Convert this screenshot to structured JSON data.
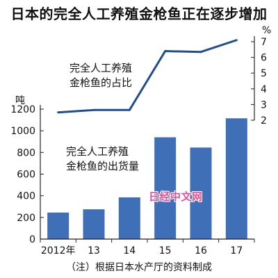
{
  "title": "日本的完全人工养殖金枪鱼正在逐步增加",
  "note": "（注）根据日本水产厅的资料制成",
  "watermark": "日经中文网",
  "chart_data": {
    "type": "bar",
    "categories": [
      "2012年",
      "13",
      "14",
      "15",
      "16",
      "17"
    ],
    "series": [
      {
        "name": "完全人工养殖金枪鱼的出货量",
        "chart_type": "bar",
        "axis": "left",
        "unit": "吨",
        "values": [
          245,
          275,
          385,
          940,
          845,
          1115
        ]
      },
      {
        "name": "完全人工养殖金枪鱼的占比",
        "chart_type": "line",
        "axis": "right",
        "unit": "%",
        "values": [
          2.5,
          2.65,
          2.65,
          6.4,
          6.35,
          7.1
        ]
      }
    ],
    "y_left": {
      "label": "吨",
      "ylim": [
        0,
        1200
      ],
      "ticks": [
        "0",
        "200",
        "400",
        "600",
        "800",
        "1000",
        "1200"
      ]
    },
    "y_right": {
      "label": "%",
      "ylim": [
        2,
        7
      ],
      "ticks": [
        "2",
        "3",
        "4",
        "5",
        "6",
        "7"
      ]
    },
    "annotations": {
      "line_label": [
        "完全人工养殖",
        "金枪鱼的占比"
      ],
      "bar_label": [
        "完全人工养殖",
        "金枪鱼的出货量"
      ]
    },
    "colors": {
      "bar": "#3f6fb6",
      "line": "#1f4e8c",
      "axis": "#222222"
    },
    "grid": false
  }
}
